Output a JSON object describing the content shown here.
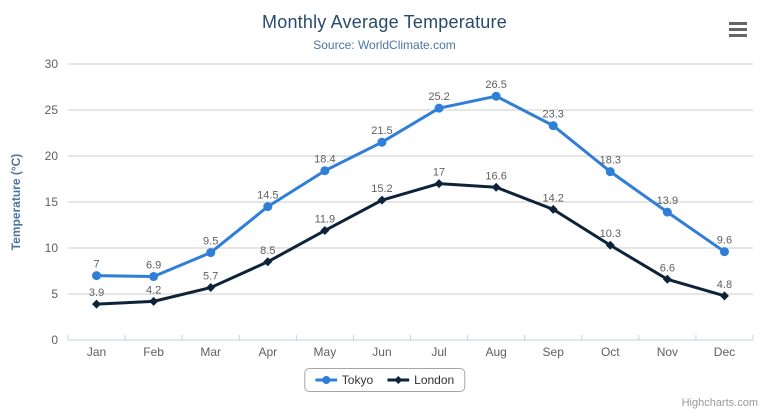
{
  "chart_data": {
    "type": "line",
    "title": "Monthly Average Temperature",
    "subtitle": "Source: WorldClimate.com",
    "ylabel": "Temperature (°C)",
    "xlabel": "",
    "categories": [
      "Jan",
      "Feb",
      "Mar",
      "Apr",
      "May",
      "Jun",
      "Jul",
      "Aug",
      "Sep",
      "Oct",
      "Nov",
      "Dec"
    ],
    "ylim": [
      0,
      30
    ],
    "yticks": [
      0,
      5,
      10,
      15,
      20,
      25,
      30
    ],
    "grid": true,
    "legend_position": "bottom-center",
    "data_labels": true,
    "series": [
      {
        "name": "Tokyo",
        "color": "#2f7ed8",
        "marker": "circle",
        "values": [
          7,
          6.9,
          9.5,
          14.5,
          18.4,
          21.5,
          25.2,
          26.5,
          23.3,
          18.3,
          13.9,
          9.6
        ]
      },
      {
        "name": "London",
        "color": "#0d233a",
        "marker": "diamond",
        "values": [
          3.9,
          4.2,
          5.7,
          8.5,
          11.9,
          15.2,
          17,
          16.6,
          14.2,
          10.3,
          6.6,
          4.8
        ]
      }
    ],
    "credits": "Highcharts.com"
  },
  "icons": {
    "menu": "hamburger-menu"
  },
  "colors": {
    "title": "#274b6d",
    "subtitle": "#4d759e",
    "axis_title": "#4d759e",
    "tick_label": "#606060",
    "data_label": "#606060",
    "gridline": "#cccccc",
    "axis_line": "#c0d0e0",
    "legend_text": "#333333",
    "legend_border": "#a6a6a6",
    "credits": "#999999",
    "menu_icon": "#666666"
  }
}
